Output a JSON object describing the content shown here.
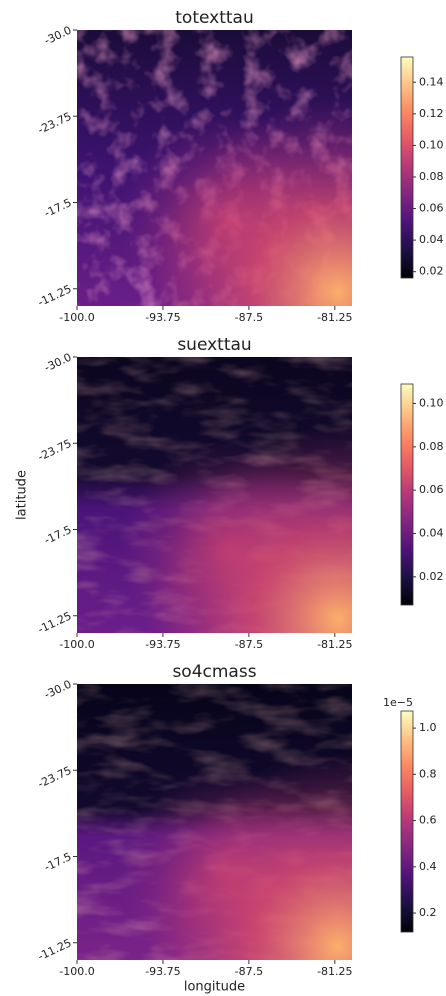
{
  "chart_data": [
    {
      "type": "heatmap",
      "title": "totexttau",
      "colormap": "magma",
      "xlim": [
        -100,
        -80
      ],
      "xticks": [
        {
          "value": -100,
          "label": "-100.0"
        },
        -93.75,
        -87.5,
        -81.25
      ],
      "ylim": [
        -30,
        -10
      ],
      "yticks": [
        {
          "value": -30,
          "label": "-30.0"
        },
        -23.75,
        -17.5,
        -11.25
      ],
      "colorbar": {
        "clim": [
          0.016,
          0.156
        ],
        "ticks": [
          0.02,
          0.04,
          0.06,
          0.08,
          {
            "value": 0.1,
            "label": "0.10"
          },
          0.12,
          0.14
        ]
      }
    },
    {
      "type": "heatmap",
      "title": "suexttau",
      "colormap": "magma",
      "ylabel": "latitude",
      "xlim": [
        -100,
        -80
      ],
      "xticks": [
        {
          "value": -100,
          "label": "-100.0"
        },
        -93.75,
        -87.5,
        -81.25
      ],
      "ylim": [
        -30,
        -10
      ],
      "yticks": [
        {
          "value": -30,
          "label": "-30.0"
        },
        -23.75,
        -17.5,
        -11.25
      ],
      "colorbar": {
        "clim": [
          0.007,
          0.109
        ],
        "ticks": [
          0.02,
          0.04,
          0.06,
          0.08,
          {
            "value": 0.1,
            "label": "0.10"
          }
        ]
      }
    },
    {
      "type": "heatmap",
      "title": "so4cmass",
      "colormap": "magma",
      "xlabel": "longitude",
      "xlim": [
        -100,
        -80
      ],
      "xticks": [
        {
          "value": -100,
          "label": "-100.0"
        },
        -93.75,
        -87.5,
        -81.25
      ],
      "ylim": [
        -30,
        -10
      ],
      "yticks": [
        {
          "value": -30,
          "label": "-30.0"
        },
        -23.75,
        -17.5,
        -11.25
      ],
      "colorbar": {
        "clim": [
          0.118,
          1.074
        ],
        "offset_label": "1e−5",
        "ticks": [
          0.2,
          0.4,
          0.6,
          0.8,
          {
            "value": 1,
            "label": "1.0"
          }
        ]
      }
    }
  ]
}
